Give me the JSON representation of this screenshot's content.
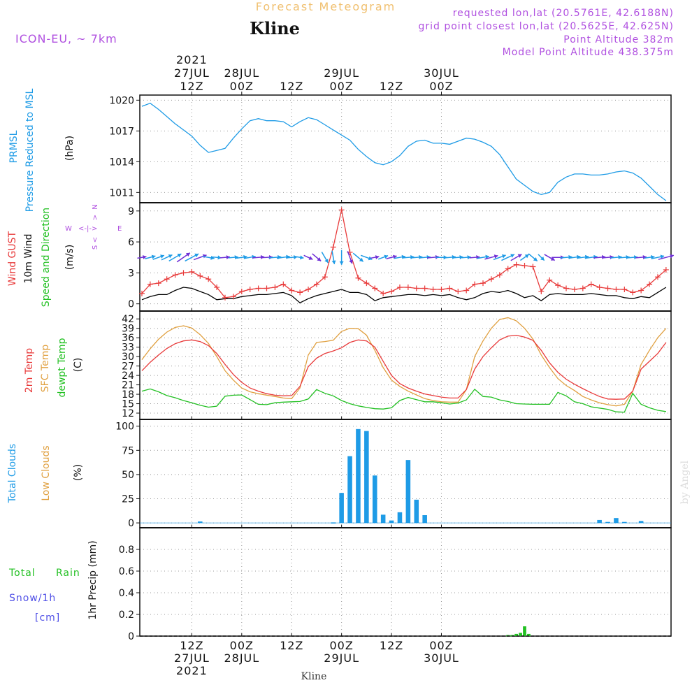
{
  "header": {
    "title_top": "Forecast Meteogram",
    "station": "Kline",
    "model": "ICON-EU, ~ 7km",
    "requested": "requested lon,lat (20.5761E, 42.6188N)",
    "grid": "grid point closest lon,lat (20.5625E, 42.625N)",
    "altitude": "Point Altitude 382m",
    "model_altitude": "Model Point Altitude 438.375m"
  },
  "watermark": "by Angel",
  "footer_label": "Kline",
  "colors": {
    "pressure": "#1e9be6",
    "gust": "#e83a3a",
    "wind": "#000000",
    "wind_arrows_primary": "#1e9be6",
    "wind_arrows_secondary": "#6f2fd6",
    "t2m": "#e83a3a",
    "sfc": "#e0a040",
    "dewpt": "#22c022",
    "clouds_total": "#1e9be6",
    "clouds_low": "#e0a040",
    "rain": "#22c022",
    "snow": "#4f4fe6",
    "purple_text": "#b050e0",
    "title_orange": "#f0c070"
  },
  "panels": {
    "pressure": {
      "labels": [
        "PRMSL",
        "Pressure Reduced to MSL",
        "(hPa)"
      ],
      "yticks": [
        "1020",
        "1017",
        "1014",
        "1011"
      ]
    },
    "wind": {
      "labels": [
        "Wind GUST",
        "10m Wind",
        "Speed and Direction",
        "(m/s)"
      ],
      "yticks": [
        "9",
        "6",
        "3",
        "0"
      ],
      "compass": {
        "n": "N",
        "s": "S",
        "w": "W",
        "e": "E"
      }
    },
    "temp": {
      "labels": [
        "2m Temp",
        "SFC Temp",
        "dewpt Temp",
        "(C)"
      ],
      "yticks": [
        "42",
        "39",
        "36",
        "33",
        "30",
        "27",
        "24",
        "21",
        "18",
        "15",
        "12"
      ]
    },
    "clouds": {
      "labels": [
        "Total Clouds",
        "Low Clouds",
        "(%)"
      ],
      "yticks": [
        "100",
        "75",
        "50",
        "25",
        "0"
      ]
    },
    "precip": {
      "labels": [
        "Total",
        "Rain",
        "Snow/1h",
        "[cm]",
        "1hr Precip (mm)"
      ],
      "yticks": [
        "0.8",
        "0.6",
        "0.4",
        "0.2",
        "0"
      ]
    }
  },
  "time_axis": {
    "top": [
      {
        "lines": [
          "2021",
          "27JUL",
          "12Z"
        ]
      },
      {
        "lines": [
          "28JUL",
          "00Z"
        ]
      },
      {
        "lines": [
          "12Z"
        ]
      },
      {
        "lines": [
          "29JUL",
          "00Z"
        ]
      },
      {
        "lines": [
          "12Z"
        ]
      },
      {
        "lines": [
          "30JUL",
          "00Z"
        ]
      }
    ],
    "bottom": [
      {
        "lines": [
          "12Z",
          "27JUL",
          "2021"
        ]
      },
      {
        "lines": [
          "00Z",
          "28JUL"
        ]
      },
      {
        "lines": [
          "12Z"
        ]
      },
      {
        "lines": [
          "00Z",
          "29JUL"
        ]
      },
      {
        "lines": [
          "12Z"
        ]
      },
      {
        "lines": [
          "00Z",
          "30JUL"
        ]
      }
    ]
  },
  "chart_data": [
    {
      "type": "line",
      "title": "PRMSL Pressure Reduced to MSL",
      "ylabel": "(hPa)",
      "x_hours": [
        0,
        2,
        4,
        6,
        8,
        10,
        12,
        14,
        16,
        18,
        20,
        22,
        24,
        26,
        28,
        30,
        32,
        34,
        36,
        38,
        40,
        42,
        44,
        46,
        48,
        50,
        52,
        54,
        56,
        58,
        60,
        62,
        64,
        66,
        68,
        70,
        72,
        74,
        76,
        78,
        80,
        82,
        84,
        86,
        88,
        90,
        92,
        94,
        96,
        98,
        100,
        102,
        104,
        106,
        108,
        110,
        112,
        114,
        116,
        118,
        120,
        122,
        124,
        126
      ],
      "series": [
        {
          "name": "PRMSL",
          "values": [
            1019.4,
            1019.7,
            1019.1,
            1018.4,
            1017.7,
            1017.1,
            1016.5,
            1015.6,
            1014.9,
            1015.1,
            1015.3,
            1016.3,
            1017.2,
            1018.0,
            1018.2,
            1018.0,
            1018.0,
            1017.9,
            1017.4,
            1017.9,
            1018.3,
            1018.1,
            1017.6,
            1017.1,
            1016.6,
            1016.1,
            1015.2,
            1014.5,
            1013.9,
            1013.7,
            1014.0,
            1014.6,
            1015.5,
            1016.0,
            1016.1,
            1015.8,
            1015.8,
            1015.7,
            1016.0,
            1016.3,
            1016.2,
            1015.9,
            1015.5,
            1014.7,
            1013.5,
            1012.3,
            1011.7,
            1011.1,
            1010.8,
            1011.0,
            1012.0,
            1012.5,
            1012.8,
            1012.8,
            1012.7,
            1012.7,
            1012.8,
            1013.0,
            1013.1,
            1012.9,
            1012.4,
            1011.6,
            1010.8,
            1010.2
          ]
        }
      ],
      "x_ticks": [
        "27JUL 12Z",
        "28JUL 00Z",
        "12Z",
        "29JUL 00Z",
        "12Z",
        "30JUL 00Z"
      ],
      "ylim": [
        1010,
        1020.5
      ]
    },
    {
      "type": "line",
      "title": "Wind GUST / 10m Wind Speed and Direction",
      "ylabel": "(m/s)",
      "x_hours": [
        0,
        2,
        4,
        6,
        8,
        10,
        12,
        14,
        16,
        18,
        20,
        22,
        24,
        26,
        28,
        30,
        32,
        34,
        36,
        38,
        40,
        42,
        44,
        46,
        48,
        50,
        52,
        54,
        56,
        58,
        60,
        62,
        64,
        66,
        68,
        70,
        72,
        74,
        76,
        78,
        80,
        82,
        84,
        86,
        88,
        90,
        92,
        94,
        96,
        98,
        100,
        102,
        104,
        106,
        108,
        110,
        112,
        114,
        116,
        118,
        120,
        122,
        124,
        126
      ],
      "series": [
        {
          "name": "Wind GUST",
          "values": [
            1.0,
            1.9,
            2.0,
            2.4,
            2.8,
            3.0,
            3.1,
            2.7,
            2.4,
            1.6,
            0.6,
            0.7,
            1.2,
            1.4,
            1.5,
            1.5,
            1.6,
            1.9,
            1.3,
            1.1,
            1.4,
            1.9,
            2.6,
            5.5,
            9.1,
            5.0,
            2.5,
            2.0,
            1.5,
            1.0,
            1.2,
            1.6,
            1.6,
            1.5,
            1.5,
            1.4,
            1.4,
            1.5,
            1.2,
            1.3,
            1.9,
            2.0,
            2.4,
            2.8,
            3.4,
            3.8,
            3.7,
            3.6,
            1.2,
            2.3,
            1.8,
            1.5,
            1.4,
            1.5,
            1.9,
            1.6,
            1.5,
            1.4,
            1.4,
            1.1,
            1.3,
            1.9,
            2.6,
            3.3
          ]
        },
        {
          "name": "10m Wind",
          "values": [
            0.4,
            0.7,
            0.9,
            0.9,
            1.3,
            1.6,
            1.5,
            1.2,
            0.9,
            0.4,
            0.5,
            0.5,
            0.7,
            0.8,
            0.9,
            0.9,
            1.0,
            1.1,
            0.8,
            0.1,
            0.5,
            0.8,
            1.0,
            1.2,
            1.4,
            1.1,
            1.1,
            0.9,
            0.3,
            0.6,
            0.7,
            0.8,
            0.9,
            0.9,
            0.8,
            0.9,
            0.8,
            0.9,
            0.6,
            0.4,
            0.6,
            1.0,
            1.2,
            1.1,
            1.3,
            1.0,
            0.6,
            0.8,
            0.3,
            0.9,
            1.0,
            0.9,
            0.9,
            0.9,
            1.0,
            0.9,
            0.8,
            0.8,
            0.6,
            0.5,
            0.7,
            0.6,
            1.1,
            1.6
          ]
        }
      ],
      "x_ticks": [
        "27JUL 12Z",
        "28JUL 00Z",
        "12Z",
        "29JUL 00Z",
        "12Z",
        "30JUL 00Z"
      ],
      "ylim": [
        -0.7,
        9.8
      ]
    },
    {
      "type": "line",
      "title": "2m Temp / SFC Temp / dewpt Temp",
      "ylabel": "(C)",
      "x_hours": [
        0,
        2,
        4,
        6,
        8,
        10,
        12,
        14,
        16,
        18,
        20,
        22,
        24,
        26,
        28,
        30,
        32,
        34,
        36,
        38,
        40,
        42,
        44,
        46,
        48,
        50,
        52,
        54,
        56,
        58,
        60,
        62,
        64,
        66,
        68,
        70,
        72,
        74,
        76,
        78,
        80,
        82,
        84,
        86,
        88,
        90,
        92,
        94,
        96,
        98,
        100,
        102,
        104,
        106,
        108,
        110,
        112,
        114,
        116,
        118,
        120,
        122,
        124,
        126
      ],
      "series": [
        {
          "name": "2m Temp",
          "values": [
            25.5,
            28.2,
            30.5,
            32.6,
            34.1,
            35.0,
            35.3,
            34.8,
            33.5,
            31.0,
            27.5,
            24.3,
            21.8,
            20.0,
            19.0,
            18.2,
            17.7,
            17.5,
            17.6,
            20.5,
            26.8,
            29.5,
            31.0,
            31.8,
            32.8,
            34.5,
            35.3,
            35.0,
            33.0,
            28.5,
            24.0,
            21.4,
            20.0,
            19.0,
            18.1,
            17.6,
            17.1,
            16.8,
            16.8,
            19.5,
            26.0,
            30.0,
            32.8,
            35.3,
            36.5,
            36.8,
            36.2,
            35.2,
            32.0,
            28.0,
            25.0,
            22.8,
            21.2,
            19.8,
            18.5,
            17.3,
            16.5,
            16.4,
            16.5,
            19.0,
            26.0,
            28.5,
            31.0,
            34.5
          ]
        },
        {
          "name": "SFC Temp",
          "values": [
            29.0,
            32.5,
            35.5,
            37.8,
            39.3,
            39.8,
            39.1,
            37.0,
            34.2,
            30.0,
            25.5,
            22.5,
            20.0,
            18.8,
            18.2,
            17.7,
            17.3,
            16.8,
            16.6,
            20.0,
            30.5,
            34.5,
            34.8,
            35.2,
            38.0,
            39.0,
            38.9,
            36.8,
            32.0,
            26.5,
            22.5,
            20.5,
            19.0,
            17.8,
            16.6,
            16.0,
            15.6,
            15.5,
            15.5,
            19.5,
            30.0,
            35.0,
            39.0,
            41.8,
            42.4,
            41.4,
            39.0,
            35.6,
            30.5,
            26.5,
            23.0,
            20.8,
            19.2,
            17.3,
            16.2,
            15.3,
            14.7,
            14.3,
            14.8,
            19.0,
            27.5,
            32.0,
            36.0,
            39.0
          ]
        },
        {
          "name": "dewpt Temp",
          "values": [
            19.0,
            19.7,
            18.8,
            17.6,
            16.9,
            16.0,
            15.3,
            14.5,
            13.9,
            14.2,
            17.4,
            17.7,
            17.8,
            16.3,
            14.8,
            14.7,
            15.3,
            15.5,
            15.6,
            15.7,
            16.5,
            19.5,
            18.3,
            17.5,
            16.0,
            15.0,
            14.3,
            13.8,
            13.4,
            13.3,
            13.7,
            16.0,
            17.0,
            16.3,
            15.6,
            15.6,
            15.3,
            14.9,
            15.2,
            16.2,
            19.6,
            17.3,
            17.1,
            16.2,
            15.7,
            15.0,
            14.9,
            14.8,
            14.8,
            14.8,
            18.6,
            17.5,
            15.6,
            15.0,
            14.0,
            13.6,
            13.2,
            12.4,
            12.3,
            18.3,
            14.8,
            13.7,
            12.9,
            12.5
          ]
        }
      ],
      "x_ticks": [
        "27JUL 12Z",
        "28JUL 00Z",
        "12Z",
        "29JUL 00Z",
        "12Z",
        "30JUL 00Z"
      ],
      "ylim": [
        10,
        44.5
      ]
    },
    {
      "type": "bar",
      "title": "Total Clouds / Low Clouds",
      "ylabel": "(%)",
      "x_hours": [
        0,
        2,
        4,
        6,
        8,
        10,
        12,
        14,
        16,
        18,
        20,
        22,
        24,
        26,
        28,
        30,
        32,
        34,
        36,
        38,
        40,
        42,
        44,
        46,
        48,
        50,
        52,
        54,
        56,
        58,
        60,
        62,
        64,
        66,
        68,
        70,
        72,
        74,
        76,
        78,
        80,
        82,
        84,
        86,
        88,
        90,
        92,
        94,
        96,
        98,
        100,
        102,
        104,
        106,
        108,
        110,
        112,
        114,
        116,
        118,
        120,
        122,
        124,
        126
      ],
      "series": [
        {
          "name": "Total Clouds",
          "values": [
            0,
            0,
            0,
            0,
            0,
            0,
            0,
            1.5,
            0,
            0,
            0,
            0,
            0,
            0,
            0,
            0,
            0,
            0,
            0,
            0,
            0,
            0,
            0,
            0.5,
            31,
            69,
            97,
            95,
            49,
            8.5,
            2.5,
            11,
            65,
            24,
            8,
            0,
            0,
            0,
            0,
            0,
            0,
            0,
            0,
            0,
            0,
            0,
            0,
            0,
            0,
            0,
            0,
            0,
            0,
            0,
            0,
            3,
            1,
            5,
            1,
            0,
            2,
            0,
            0,
            0
          ]
        },
        {
          "name": "Low Clouds",
          "values": [
            0,
            0,
            0,
            0,
            0,
            0,
            0,
            0,
            0,
            0,
            0,
            0,
            0,
            0,
            0,
            0,
            0,
            0,
            0,
            0,
            0,
            0,
            0,
            0,
            0,
            0,
            0,
            0,
            0,
            0,
            0,
            0,
            0,
            0,
            0,
            0,
            0,
            0,
            0,
            0,
            0,
            0,
            0,
            0,
            0,
            0,
            0,
            0,
            0,
            0,
            0,
            0,
            0,
            0,
            0,
            0,
            0,
            0,
            0,
            0,
            0,
            0,
            0,
            0
          ]
        }
      ],
      "x_ticks": [
        "27JUL 12Z",
        "28JUL 00Z",
        "12Z",
        "29JUL 00Z",
        "12Z",
        "30JUL 00Z"
      ],
      "ylim": [
        -5,
        107
      ]
    },
    {
      "type": "bar",
      "title": "Total Rain / Snow/1h [cm]",
      "ylabel": "1hr Precip (mm)",
      "x_hours": [
        88,
        89,
        90,
        91,
        92,
        93,
        94
      ],
      "series": [
        {
          "name": "Total Rain",
          "values": [
            0.01,
            0.01,
            0.02,
            0.03,
            0.09,
            0.02,
            0.0
          ]
        },
        {
          "name": "Snow/1h [cm]",
          "values": [
            0,
            0,
            0,
            0,
            0,
            0,
            0
          ]
        }
      ],
      "x_ticks": [
        "27JUL 12Z",
        "28JUL 00Z",
        "12Z",
        "29JUL 00Z",
        "12Z",
        "30JUL 00Z"
      ],
      "ylim": [
        0,
        1.0
      ]
    }
  ]
}
